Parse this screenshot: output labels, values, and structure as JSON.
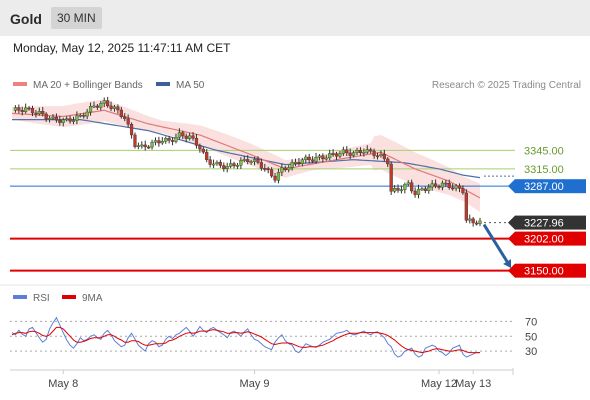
{
  "header": {
    "symbol": "Gold",
    "interval": "30 MIN"
  },
  "datetime": "Monday, May 12, 2025 11:47:11 AM CET",
  "legend": {
    "ma_bb": "MA 20 + Bollinger Bands",
    "ma50": "MA 50"
  },
  "credit": "Research © 2025 Trading Central",
  "rsi_legend": {
    "rsi": "RSI",
    "ma": "9MA"
  },
  "colors": {
    "bollinger": "#f4a7a7",
    "ma20": "#e07a7a",
    "ma50": "#4f6fa8",
    "pivot_level": "#1f6fd1",
    "support": "#e00000",
    "resistance": "#a8cf6e",
    "price": "#333333",
    "arrow": "#2d5fa0",
    "rsi": "#5b7fd6",
    "rsi_ma": "#e00000"
  },
  "chart_data": {
    "type": "candlestick",
    "x_labels": [
      "May 8",
      "May 9",
      "May 12",
      "May 13"
    ],
    "price_axis": {
      "range": [
        3130,
        3430
      ],
      "levels": [
        {
          "value": 3345.0,
          "label": "3345.00",
          "kind": "resistance"
        },
        {
          "value": 3315.0,
          "label": "3315.00",
          "kind": "resistance"
        },
        {
          "value": 3287.0,
          "label": "3287.00",
          "kind": "pivot"
        },
        {
          "value": 3227.96,
          "label": "3227.96",
          "kind": "last_price"
        },
        {
          "value": 3202.0,
          "label": "3202.00",
          "kind": "support"
        },
        {
          "value": 3150.0,
          "label": "3150.00",
          "kind": "support"
        }
      ]
    },
    "close_path": [
      [
        0,
        3410
      ],
      [
        4,
        3412
      ],
      [
        8,
        3405
      ],
      [
        12,
        3395
      ],
      [
        16,
        3393
      ],
      [
        20,
        3400
      ],
      [
        24,
        3417
      ],
      [
        27,
        3422
      ],
      [
        30,
        3413
      ],
      [
        33,
        3398
      ],
      [
        36,
        3355
      ],
      [
        38,
        3350
      ],
      [
        41,
        3356
      ],
      [
        44,
        3362
      ],
      [
        46,
        3360
      ],
      [
        49,
        3370
      ],
      [
        52,
        3367
      ],
      [
        55,
        3350
      ],
      [
        57,
        3328
      ],
      [
        60,
        3322
      ],
      [
        63,
        3318
      ],
      [
        66,
        3324
      ],
      [
        69,
        3330
      ],
      [
        72,
        3325
      ],
      [
        75,
        3310
      ],
      [
        77,
        3300
      ],
      [
        79,
        3314
      ],
      [
        82,
        3322
      ],
      [
        85,
        3330
      ],
      [
        88,
        3331
      ],
      [
        91,
        3334
      ],
      [
        94,
        3338
      ],
      [
        97,
        3342
      ],
      [
        100,
        3340
      ],
      [
        103,
        3345
      ],
      [
        106,
        3340
      ],
      [
        108,
        3335
      ],
      [
        110,
        3327
      ],
      [
        111,
        3278
      ],
      [
        113,
        3282
      ],
      [
        116,
        3290
      ],
      [
        118,
        3275
      ],
      [
        120,
        3282
      ],
      [
        123,
        3287
      ],
      [
        126,
        3290
      ],
      [
        129,
        3286
      ],
      [
        132,
        3280
      ],
      [
        133,
        3232
      ],
      [
        135,
        3228
      ],
      [
        136,
        3230
      ],
      [
        137,
        3229
      ]
    ],
    "ma50": [
      [
        0,
        3395
      ],
      [
        20,
        3395
      ],
      [
        40,
        3377
      ],
      [
        60,
        3345
      ],
      [
        80,
        3322
      ],
      [
        100,
        3330
      ],
      [
        115,
        3325
      ],
      [
        125,
        3315
      ],
      [
        132,
        3305
      ],
      [
        137,
        3301
      ]
    ],
    "ma20": [
      [
        0,
        3405
      ],
      [
        15,
        3400
      ],
      [
        27,
        3410
      ],
      [
        40,
        3388
      ],
      [
        55,
        3370
      ],
      [
        70,
        3338
      ],
      [
        80,
        3315
      ],
      [
        95,
        3330
      ],
      [
        108,
        3342
      ],
      [
        118,
        3315
      ],
      [
        128,
        3295
      ],
      [
        137,
        3268
      ]
    ],
    "rsi": {
      "levels": [
        70,
        50,
        30
      ],
      "range": [
        10,
        80
      ],
      "values": [
        55,
        52,
        58,
        53,
        50,
        60,
        62,
        55,
        48,
        42,
        46,
        60,
        68,
        75,
        65,
        55,
        45,
        38,
        34,
        40,
        48,
        44,
        46,
        50,
        52,
        48,
        46,
        54,
        58,
        52,
        44,
        40,
        36,
        38,
        48,
        54,
        46,
        38,
        34,
        30,
        40,
        44,
        42,
        36,
        38,
        46,
        50,
        47,
        52,
        54,
        58,
        62,
        57,
        50,
        56,
        63,
        58,
        55,
        60,
        62,
        58,
        55,
        52,
        48,
        55,
        57,
        54,
        50,
        56,
        60,
        52,
        46,
        44,
        40,
        36,
        34,
        32,
        42,
        48,
        52,
        44,
        40,
        38,
        30,
        28,
        34,
        40,
        38,
        36,
        35,
        38,
        42,
        44,
        46,
        50,
        54,
        55,
        56,
        58,
        54,
        52,
        53,
        55,
        57,
        54,
        52,
        55,
        56,
        52,
        48,
        40,
        36,
        26,
        22,
        24,
        30,
        32,
        34,
        26,
        22,
        24,
        34,
        36,
        38,
        36,
        30,
        28,
        24,
        28,
        34,
        36,
        38,
        26,
        22,
        24,
        26,
        28,
        28
      ],
      "ma9": [
        52,
        54,
        55,
        55,
        54,
        56,
        57,
        56,
        54,
        51,
        50,
        52,
        57,
        62,
        62,
        60,
        55,
        50,
        45,
        42,
        42,
        43,
        45,
        47,
        48,
        48,
        48,
        50,
        52,
        52,
        50,
        47,
        45,
        42,
        42,
        44,
        44,
        43,
        40,
        38,
        38,
        39,
        40,
        40,
        40,
        41,
        44,
        45,
        47,
        50,
        52,
        54,
        55,
        54,
        55,
        57,
        57,
        57,
        58,
        59,
        58,
        57,
        56,
        54,
        54,
        55,
        55,
        54,
        55,
        56,
        55,
        53,
        51,
        49,
        46,
        43,
        40,
        39,
        40,
        41,
        41,
        41,
        40,
        38,
        36,
        35,
        35,
        36,
        36,
        36,
        37,
        38,
        40,
        42,
        44,
        47,
        49,
        51,
        53,
        54,
        54,
        54,
        55,
        55,
        55,
        55,
        55,
        55,
        54,
        53,
        51,
        48,
        45,
        41,
        37,
        34,
        32,
        31,
        30,
        29,
        28,
        29,
        30,
        32,
        33,
        33,
        32,
        31,
        30,
        30,
        31,
        32,
        31,
        29,
        28,
        28,
        28,
        28
      ]
    }
  }
}
